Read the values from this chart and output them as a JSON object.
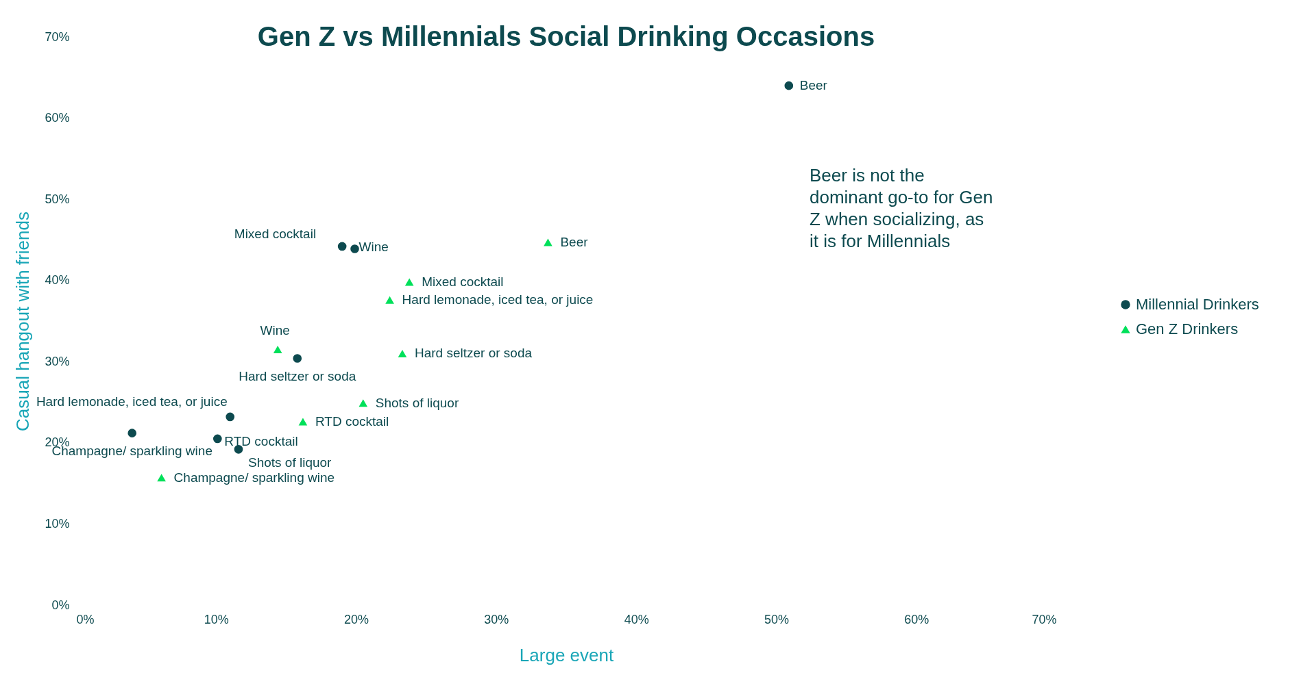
{
  "chart_data": {
    "type": "scatter",
    "title": "Gen Z vs Millennials Social Drinking Occasions",
    "xlabel": "Large event",
    "ylabel": "Casual hangout with friends",
    "series": [
      {
        "name": "Millennial Drinkers",
        "color": "#0d4a4f",
        "marker": "circle",
        "x": [
          50.9,
          19.0,
          19.9,
          15.8,
          11.0,
          4.0,
          10.1,
          11.6
        ],
        "values": [
          64.0,
          44.2,
          43.9,
          30.4,
          23.2,
          21.2,
          20.5,
          19.2
        ]
      },
      {
        "name": "Gen Z Drinkers",
        "color": "#00e05a",
        "marker": "triangle",
        "x": [
          33.7,
          23.8,
          22.4,
          14.4,
          23.3,
          20.5,
          16.2,
          6.1
        ],
        "values": [
          44.7,
          39.8,
          37.6,
          31.5,
          31.0,
          24.9,
          22.6,
          15.7
        ]
      }
    ],
    "xlim": [
      0,
      70
    ],
    "ylim": [
      0,
      70
    ],
    "xticks": [
      {
        "value": 0,
        "label": "0%"
      },
      {
        "value": 10,
        "label": "10%"
      },
      {
        "value": 20,
        "label": "20%"
      },
      {
        "value": 30,
        "label": "30%"
      },
      {
        "value": 40,
        "label": "40%"
      },
      {
        "value": 50,
        "label": "50%"
      },
      {
        "value": 60,
        "label": "60%"
      },
      {
        "value": 70,
        "label": "70%"
      }
    ],
    "yticks": [
      {
        "value": 0,
        "label": "0%"
      },
      {
        "value": 10,
        "label": "10%"
      },
      {
        "value": 20,
        "label": "20%"
      },
      {
        "value": 30,
        "label": "30%"
      },
      {
        "value": 40,
        "label": "40%"
      },
      {
        "value": 50,
        "label": "50%"
      },
      {
        "value": 60,
        "label": "60%"
      },
      {
        "value": 70,
        "label": "70%"
      }
    ],
    "grid": false,
    "legend": "right",
    "annotations": [
      {
        "text": "Beer",
        "x": 50.9,
        "y": 64.0
      },
      {
        "text": "Mixed cocktail",
        "x": 19.0,
        "y": 44.2
      },
      {
        "text": "Wine",
        "x": 19.9,
        "y": 43.9
      },
      {
        "text": "Hard seltzer or soda",
        "x": 15.8,
        "y": 30.4
      },
      {
        "text": "Hard lemonade, iced tea, or juice",
        "x": 11.0,
        "y": 23.2
      },
      {
        "text": "Champagne/ sparkling wine",
        "x": 4.0,
        "y": 21.2
      },
      {
        "text": "RTD cocktail",
        "x": 10.1,
        "y": 20.5
      },
      {
        "text": "Shots of liquor",
        "x": 11.6,
        "y": 19.2
      },
      {
        "text": "Beer",
        "x": 33.7,
        "y": 44.7
      },
      {
        "text": "Mixed cocktail",
        "x": 23.8,
        "y": 39.8
      },
      {
        "text": "Hard lemonade, iced tea, or juice",
        "x": 22.4,
        "y": 37.6
      },
      {
        "text": "Wine",
        "x": 14.4,
        "y": 31.5
      },
      {
        "text": "Hard seltzer or soda",
        "x": 23.3,
        "y": 31.0
      },
      {
        "text": "Shots of liquor",
        "x": 20.5,
        "y": 24.9
      },
      {
        "text": "RTD cocktail",
        "x": 16.2,
        "y": 22.6
      },
      {
        "text": "Champagne/ sparkling wine",
        "x": 6.1,
        "y": 15.7
      },
      "Beer is not the dominant go-to for Gen Z when socializing, as it is for Millennials"
    ]
  }
}
